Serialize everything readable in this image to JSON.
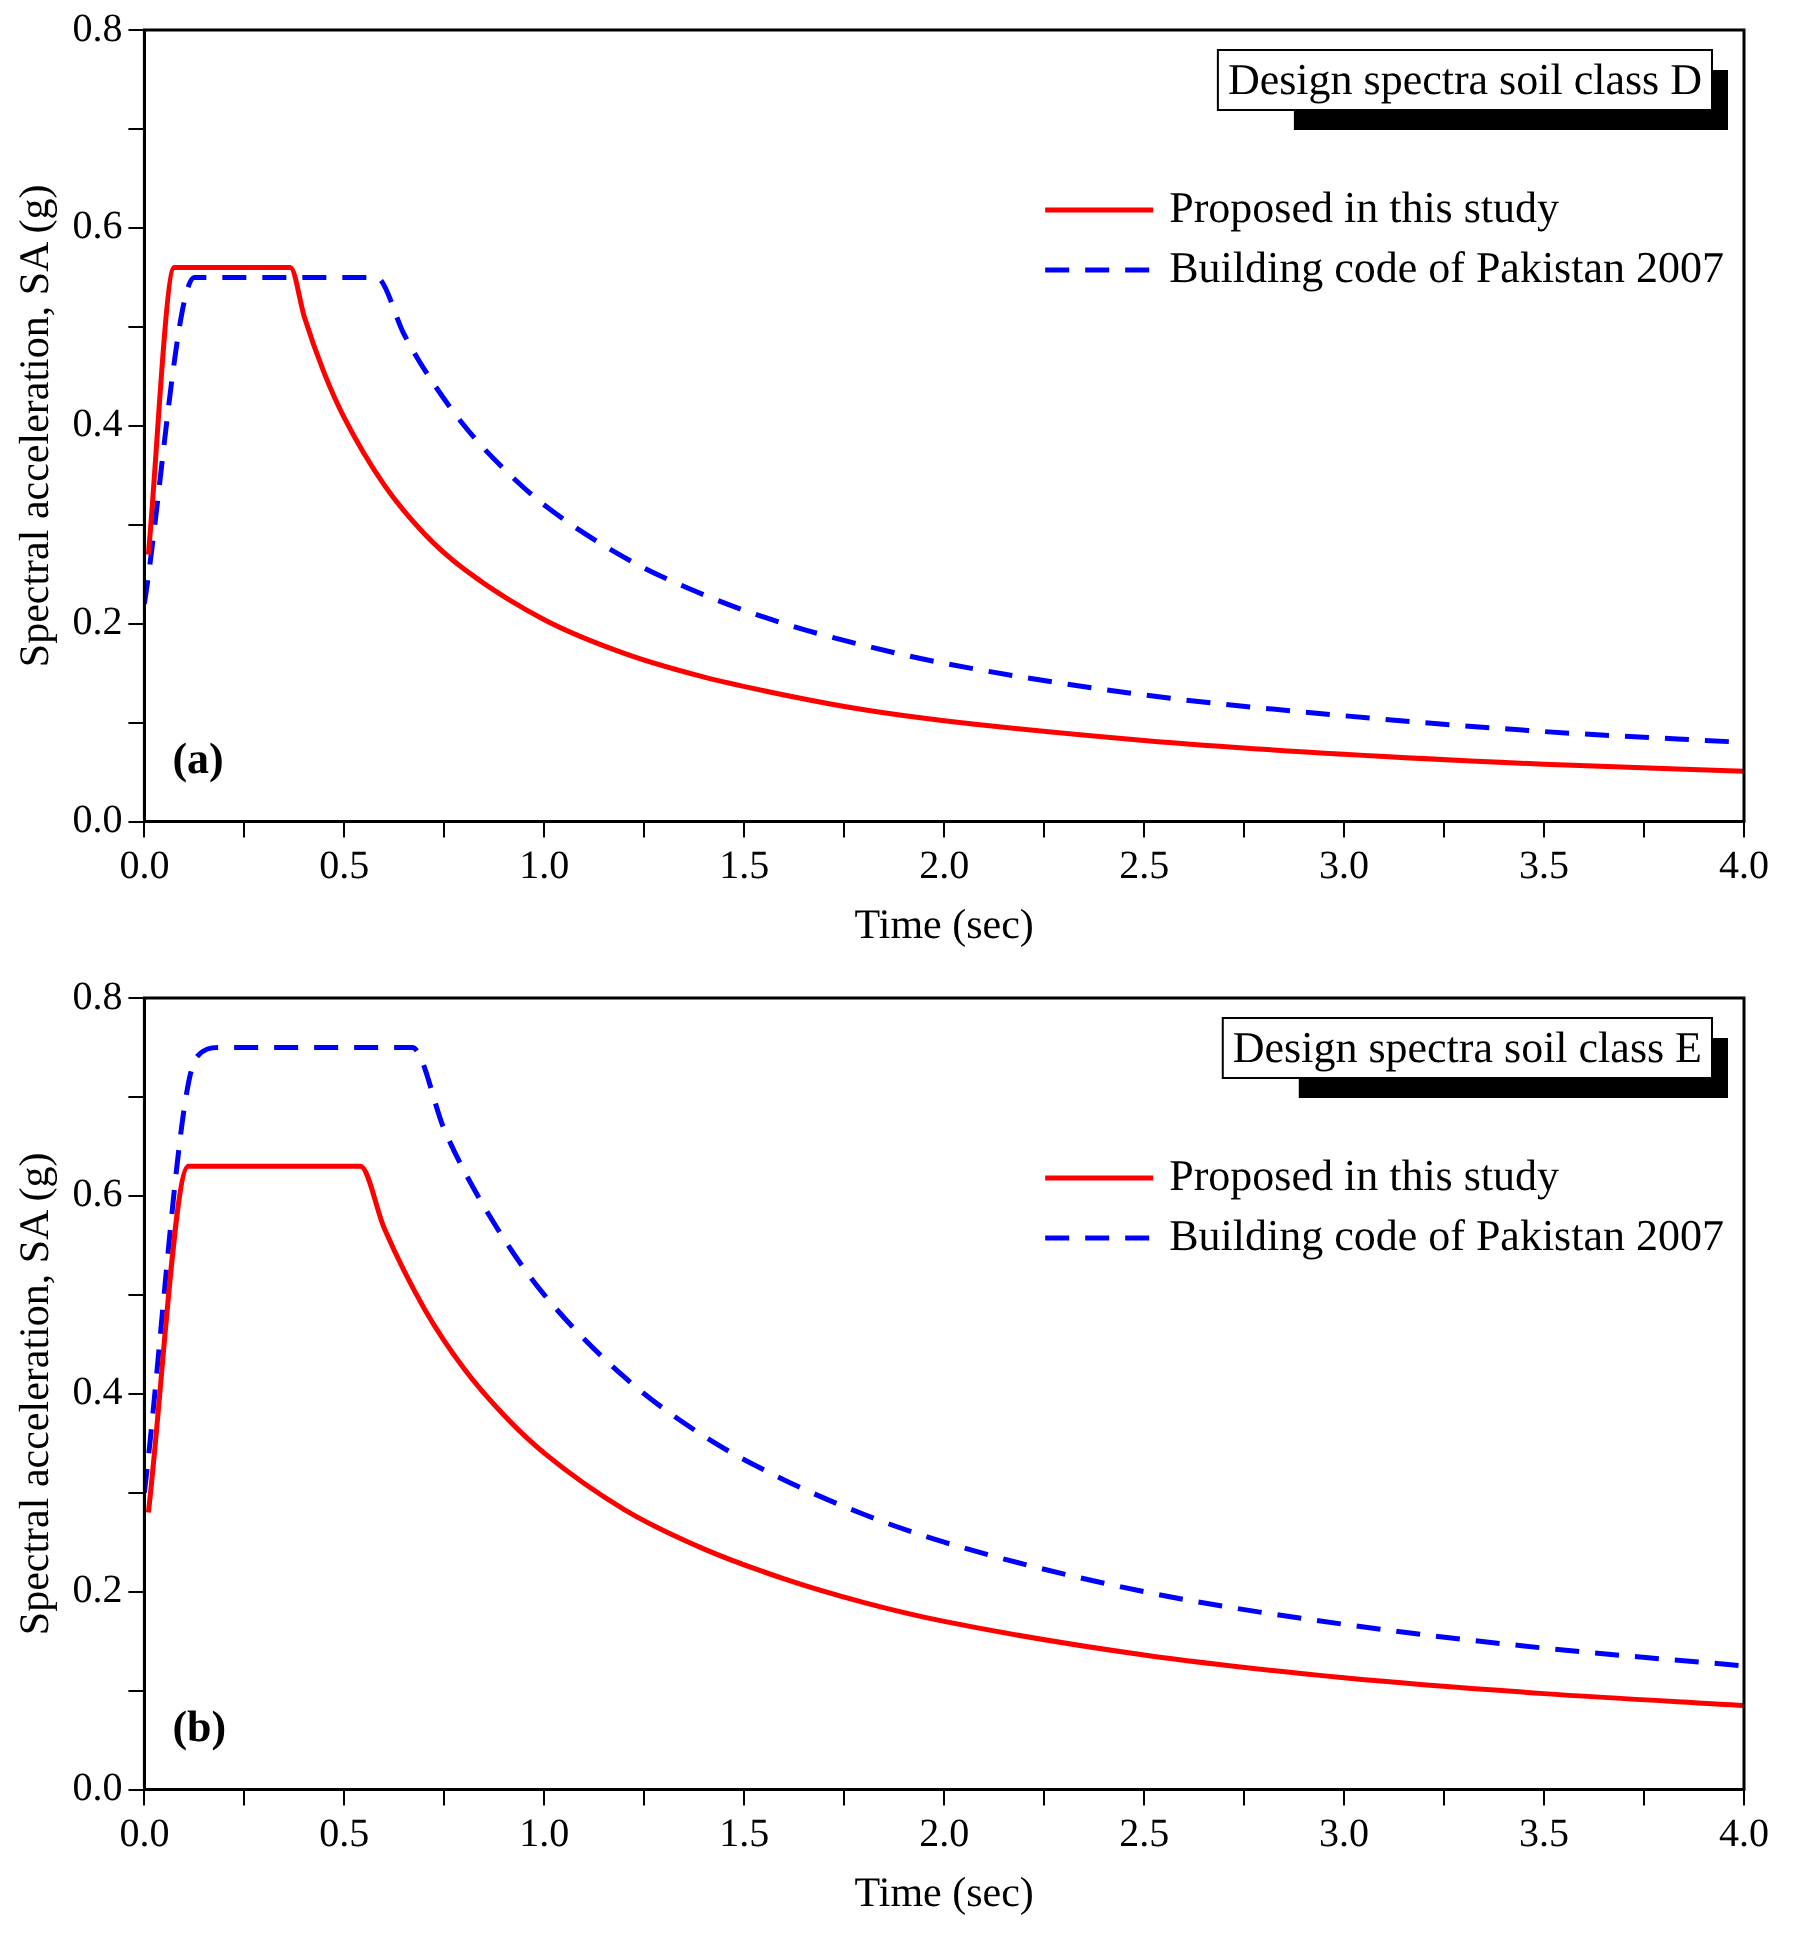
{
  "chart_data": [
    {
      "type": "line",
      "title": "Design spectra soil class D",
      "xlabel": "Time (sec)",
      "ylabel": "Spectral acceleration, SA (g)",
      "annotations": [
        "(a)"
      ],
      "legend": "top right",
      "xlim": [
        0,
        4
      ],
      "ylim": [
        0,
        0.8
      ],
      "xticks": [
        {
          "value": 0,
          "label": "0.0"
        },
        {
          "value": 0.25,
          "label": null
        },
        {
          "value": 0.5,
          "label": "0.5"
        },
        {
          "value": 0.75,
          "label": null
        },
        {
          "value": 1,
          "label": "1.0"
        },
        {
          "value": 1.25,
          "label": null
        },
        {
          "value": 1.5,
          "label": "1.5"
        },
        {
          "value": 1.75,
          "label": null
        },
        {
          "value": 2,
          "label": "2.0"
        },
        {
          "value": 2.25,
          "label": null
        },
        {
          "value": 2.5,
          "label": "2.5"
        },
        {
          "value": 2.75,
          "label": null
        },
        {
          "value": 3,
          "label": "3.0"
        },
        {
          "value": 3.25,
          "label": null
        },
        {
          "value": 3.5,
          "label": "3.5"
        },
        {
          "value": 3.75,
          "label": null
        },
        {
          "value": 4,
          "label": "4.0"
        }
      ],
      "yticks": [
        {
          "value": 0,
          "label": "0.0"
        },
        {
          "value": 0.1,
          "label": null
        },
        {
          "value": 0.2,
          "label": "0.2"
        },
        {
          "value": 0.3,
          "label": null
        },
        {
          "value": 0.4,
          "label": "0.4"
        },
        {
          "value": 0.5,
          "label": null
        },
        {
          "value": 0.6,
          "label": "0.6"
        },
        {
          "value": 0.7,
          "label": null
        },
        {
          "value": 0.8,
          "label": "0.8"
        }
      ],
      "series": [
        {
          "name": "Proposed in this study",
          "color": "#ff0000",
          "line_style": "solid",
          "x": [
            0.01,
            0.075,
            0.365,
            0.4,
            0.45,
            0.5,
            0.6,
            0.7,
            0.8,
            1.0,
            1.2,
            1.4,
            1.6,
            1.8,
            2.0,
            2.5,
            3.0,
            3.5,
            4.0
          ],
          "values": [
            0.27,
            0.56,
            0.56,
            0.51,
            0.453,
            0.408,
            0.34,
            0.291,
            0.255,
            0.204,
            0.17,
            0.146,
            0.128,
            0.113,
            0.102,
            0.082,
            0.068,
            0.058,
            0.051
          ]
        },
        {
          "name": "Building code of Pakistan 2007",
          "color": "#0000ff",
          "line_style": "dashed",
          "x": [
            0,
            0.125,
            0.58,
            0.65,
            0.7,
            0.8,
            0.9,
            1.0,
            1.2,
            1.4,
            1.6,
            1.8,
            2.0,
            2.5,
            3.0,
            3.5,
            4.0
          ],
          "values": [
            0.22,
            0.55,
            0.55,
            0.492,
            0.457,
            0.4,
            0.356,
            0.32,
            0.267,
            0.229,
            0.2,
            0.178,
            0.16,
            0.128,
            0.107,
            0.091,
            0.08
          ]
        }
      ]
    },
    {
      "type": "line",
      "title": "Design spectra soil class E",
      "xlabel": "Time (sec)",
      "ylabel": "Spectral acceleration, SA (g)",
      "annotations": [
        "(b)"
      ],
      "legend": "top right",
      "xlim": [
        0,
        4
      ],
      "ylim": [
        0,
        0.8
      ],
      "xticks": [
        {
          "value": 0,
          "label": "0.0"
        },
        {
          "value": 0.25,
          "label": null
        },
        {
          "value": 0.5,
          "label": "0.5"
        },
        {
          "value": 0.75,
          "label": null
        },
        {
          "value": 1,
          "label": "1.0"
        },
        {
          "value": 1.25,
          "label": null
        },
        {
          "value": 1.5,
          "label": "1.5"
        },
        {
          "value": 1.75,
          "label": null
        },
        {
          "value": 2,
          "label": "2.0"
        },
        {
          "value": 2.25,
          "label": null
        },
        {
          "value": 2.5,
          "label": "2.5"
        },
        {
          "value": 2.75,
          "label": null
        },
        {
          "value": 3,
          "label": "3.0"
        },
        {
          "value": 3.25,
          "label": null
        },
        {
          "value": 3.5,
          "label": "3.5"
        },
        {
          "value": 3.75,
          "label": null
        },
        {
          "value": 4,
          "label": "4.0"
        }
      ],
      "yticks": [
        {
          "value": 0,
          "label": "0.0"
        },
        {
          "value": 0.1,
          "label": null
        },
        {
          "value": 0.2,
          "label": "0.2"
        },
        {
          "value": 0.3,
          "label": null
        },
        {
          "value": 0.4,
          "label": "0.4"
        },
        {
          "value": 0.5,
          "label": null
        },
        {
          "value": 0.6,
          "label": "0.6"
        },
        {
          "value": 0.7,
          "label": null
        },
        {
          "value": 0.8,
          "label": "0.8"
        }
      ],
      "series": [
        {
          "name": "Proposed in this study",
          "color": "#ff0000",
          "line_style": "solid",
          "x": [
            0.01,
            0.11,
            0.54,
            0.6,
            0.7,
            0.8,
            0.9,
            1.0,
            1.2,
            1.4,
            1.6,
            1.8,
            2.0,
            2.5,
            3.0,
            3.5,
            4.0
          ],
          "values": [
            0.28,
            0.63,
            0.63,
            0.567,
            0.486,
            0.425,
            0.378,
            0.34,
            0.283,
            0.243,
            0.213,
            0.189,
            0.17,
            0.136,
            0.113,
            0.097,
            0.085
          ]
        },
        {
          "name": "Building code of Pakistan 2007",
          "color": "#0000ff",
          "line_style": "dashed",
          "x": [
            0,
            0.13,
            0.19,
            0.67,
            0.75,
            0.8,
            0.9,
            1.0,
            1.2,
            1.4,
            1.6,
            1.8,
            2.0,
            2.5,
            3.0,
            3.5,
            4.0
          ],
          "values": [
            0.3,
            0.74,
            0.75,
            0.75,
            0.667,
            0.625,
            0.556,
            0.5,
            0.417,
            0.357,
            0.313,
            0.278,
            0.25,
            0.2,
            0.167,
            0.143,
            0.125
          ]
        }
      ]
    }
  ]
}
